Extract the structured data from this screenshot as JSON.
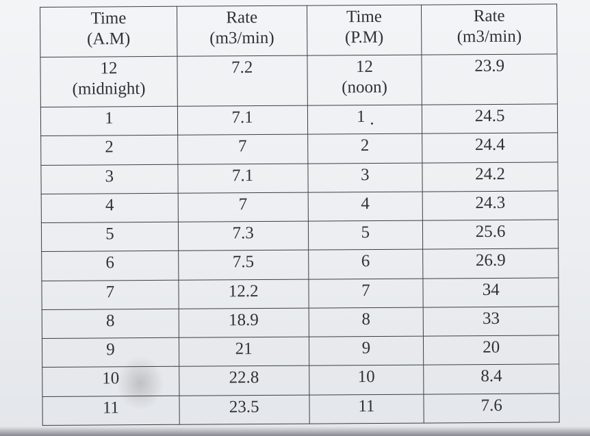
{
  "table": {
    "headers": [
      {
        "line1": "Time",
        "line2": "(A.M)"
      },
      {
        "line1": "Rate",
        "line2": "(m3/min)"
      },
      {
        "line1": "Time",
        "line2": "(P.M)"
      },
      {
        "line1": "Rate",
        "line2": "(m3/min)"
      }
    ],
    "first_row": {
      "am_time": "12",
      "am_note": "(midnight)",
      "am_rate": "7.2",
      "pm_time": "12",
      "pm_note": "(noon)",
      "pm_rate": "23.9"
    },
    "rows": [
      {
        "am_time": "1",
        "am_rate": "7.1",
        "pm_time": "1",
        "pm_rate": "24.5"
      },
      {
        "am_time": "2",
        "am_rate": "7",
        "pm_time": "2",
        "pm_rate": "24.4"
      },
      {
        "am_time": "3",
        "am_rate": "7.1",
        "pm_time": "3",
        "pm_rate": "24.2"
      },
      {
        "am_time": "4",
        "am_rate": "7",
        "pm_time": "4",
        "pm_rate": "24.3"
      },
      {
        "am_time": "5",
        "am_rate": "7.3",
        "pm_time": "5",
        "pm_rate": "25.6"
      },
      {
        "am_time": "6",
        "am_rate": "7.5",
        "pm_time": "6",
        "pm_rate": "26.9"
      },
      {
        "am_time": "7",
        "am_rate": "12.2",
        "pm_time": "7",
        "pm_rate": "34"
      },
      {
        "am_time": "8",
        "am_rate": "18.9",
        "pm_time": "8",
        "pm_rate": "33"
      },
      {
        "am_time": "9",
        "am_rate": "21",
        "pm_time": "9",
        "pm_rate": "20"
      },
      {
        "am_time": "10",
        "am_rate": "22.8",
        "pm_time": "10",
        "pm_rate": "8.4"
      },
      {
        "am_time": "11",
        "am_rate": "23.5",
        "pm_time": "11",
        "pm_rate": "7.6"
      }
    ]
  }
}
